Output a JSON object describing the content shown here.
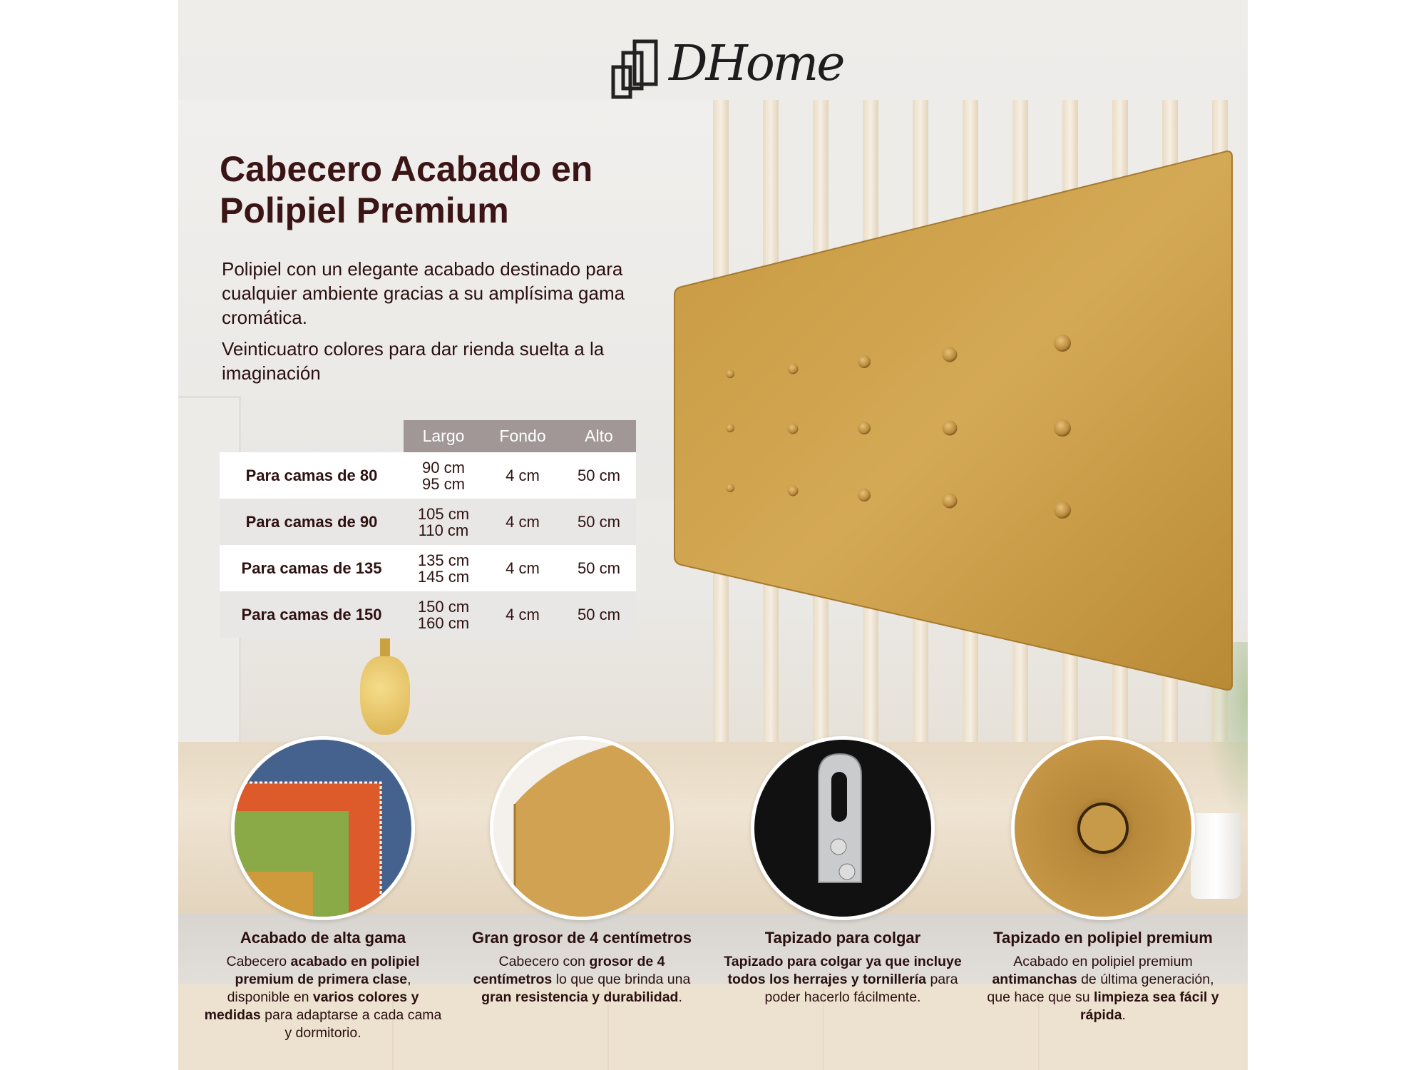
{
  "brand": {
    "logo_text": "DHome"
  },
  "title": {
    "line1": "Cabecero Acabado en",
    "line2": "Polipiel Premium"
  },
  "paragraphs": [
    "Polipiel con un elegante acabado destinado para cualquier ambiente gracias a su amplísima gama cromática.",
    "Veinticuatro colores para dar rienda suelta a la imaginación"
  ],
  "table": {
    "headers": [
      "",
      "Largo",
      "Fondo",
      "Alto"
    ],
    "rows": [
      {
        "label": "Para camas de 80",
        "largo": [
          "90 cm",
          "95 cm"
        ],
        "fondo": "4 cm",
        "alto": "50 cm"
      },
      {
        "label": "Para camas de 90",
        "largo": [
          "105 cm",
          "110 cm"
        ],
        "fondo": "4 cm",
        "alto": "50 cm"
      },
      {
        "label": "Para camas de 135",
        "largo": [
          "135 cm",
          "145 cm"
        ],
        "fondo": "4 cm",
        "alto": "50 cm"
      },
      {
        "label": "Para camas de 150",
        "largo": [
          "150 cm",
          "160 cm"
        ],
        "fondo": "4 cm",
        "alto": "50 cm"
      }
    ]
  },
  "colors": {
    "headboard": "#c99b45",
    "header_bg": "#a29797",
    "title": "#3b1515"
  },
  "features": [
    {
      "title": "Acabado de alta gama",
      "image": "color-swatches",
      "desc": [
        {
          "t": "Cabecero "
        },
        {
          "t": "acabado en polipiel premium de primera clase",
          "b": true
        },
        {
          "t": ", disponible en "
        },
        {
          "t": "varios colores y medidas",
          "b": true
        },
        {
          "t": " para adaptarse a cada cama y dormitorio."
        }
      ]
    },
    {
      "title": "Gran grosor de 4 centímetros",
      "image": "headboard-edge",
      "desc": [
        {
          "t": "Cabecero con "
        },
        {
          "t": "grosor de 4 centímetros",
          "b": true
        },
        {
          "t": " lo que que brinda una "
        },
        {
          "t": "gran resistencia y durabilidad",
          "b": true
        },
        {
          "t": "."
        }
      ]
    },
    {
      "title": "Tapizado para colgar",
      "image": "hanging-bracket",
      "desc": [
        {
          "t": "Tapizado para colgar ya que incluye todos los herrajes y tornillería",
          "b": true
        },
        {
          "t": " para poder hacerlo fácilmente."
        }
      ]
    },
    {
      "title": "Tapizado en polipiel premium",
      "image": "button-closeup",
      "desc": [
        {
          "t": "Acabado en polipiel premium "
        },
        {
          "t": "antimanchas",
          "b": true
        },
        {
          "t": " de última generación, que hace que su "
        },
        {
          "t": "limpieza sea fácil y rápida",
          "b": true
        },
        {
          "t": "."
        }
      ]
    }
  ]
}
